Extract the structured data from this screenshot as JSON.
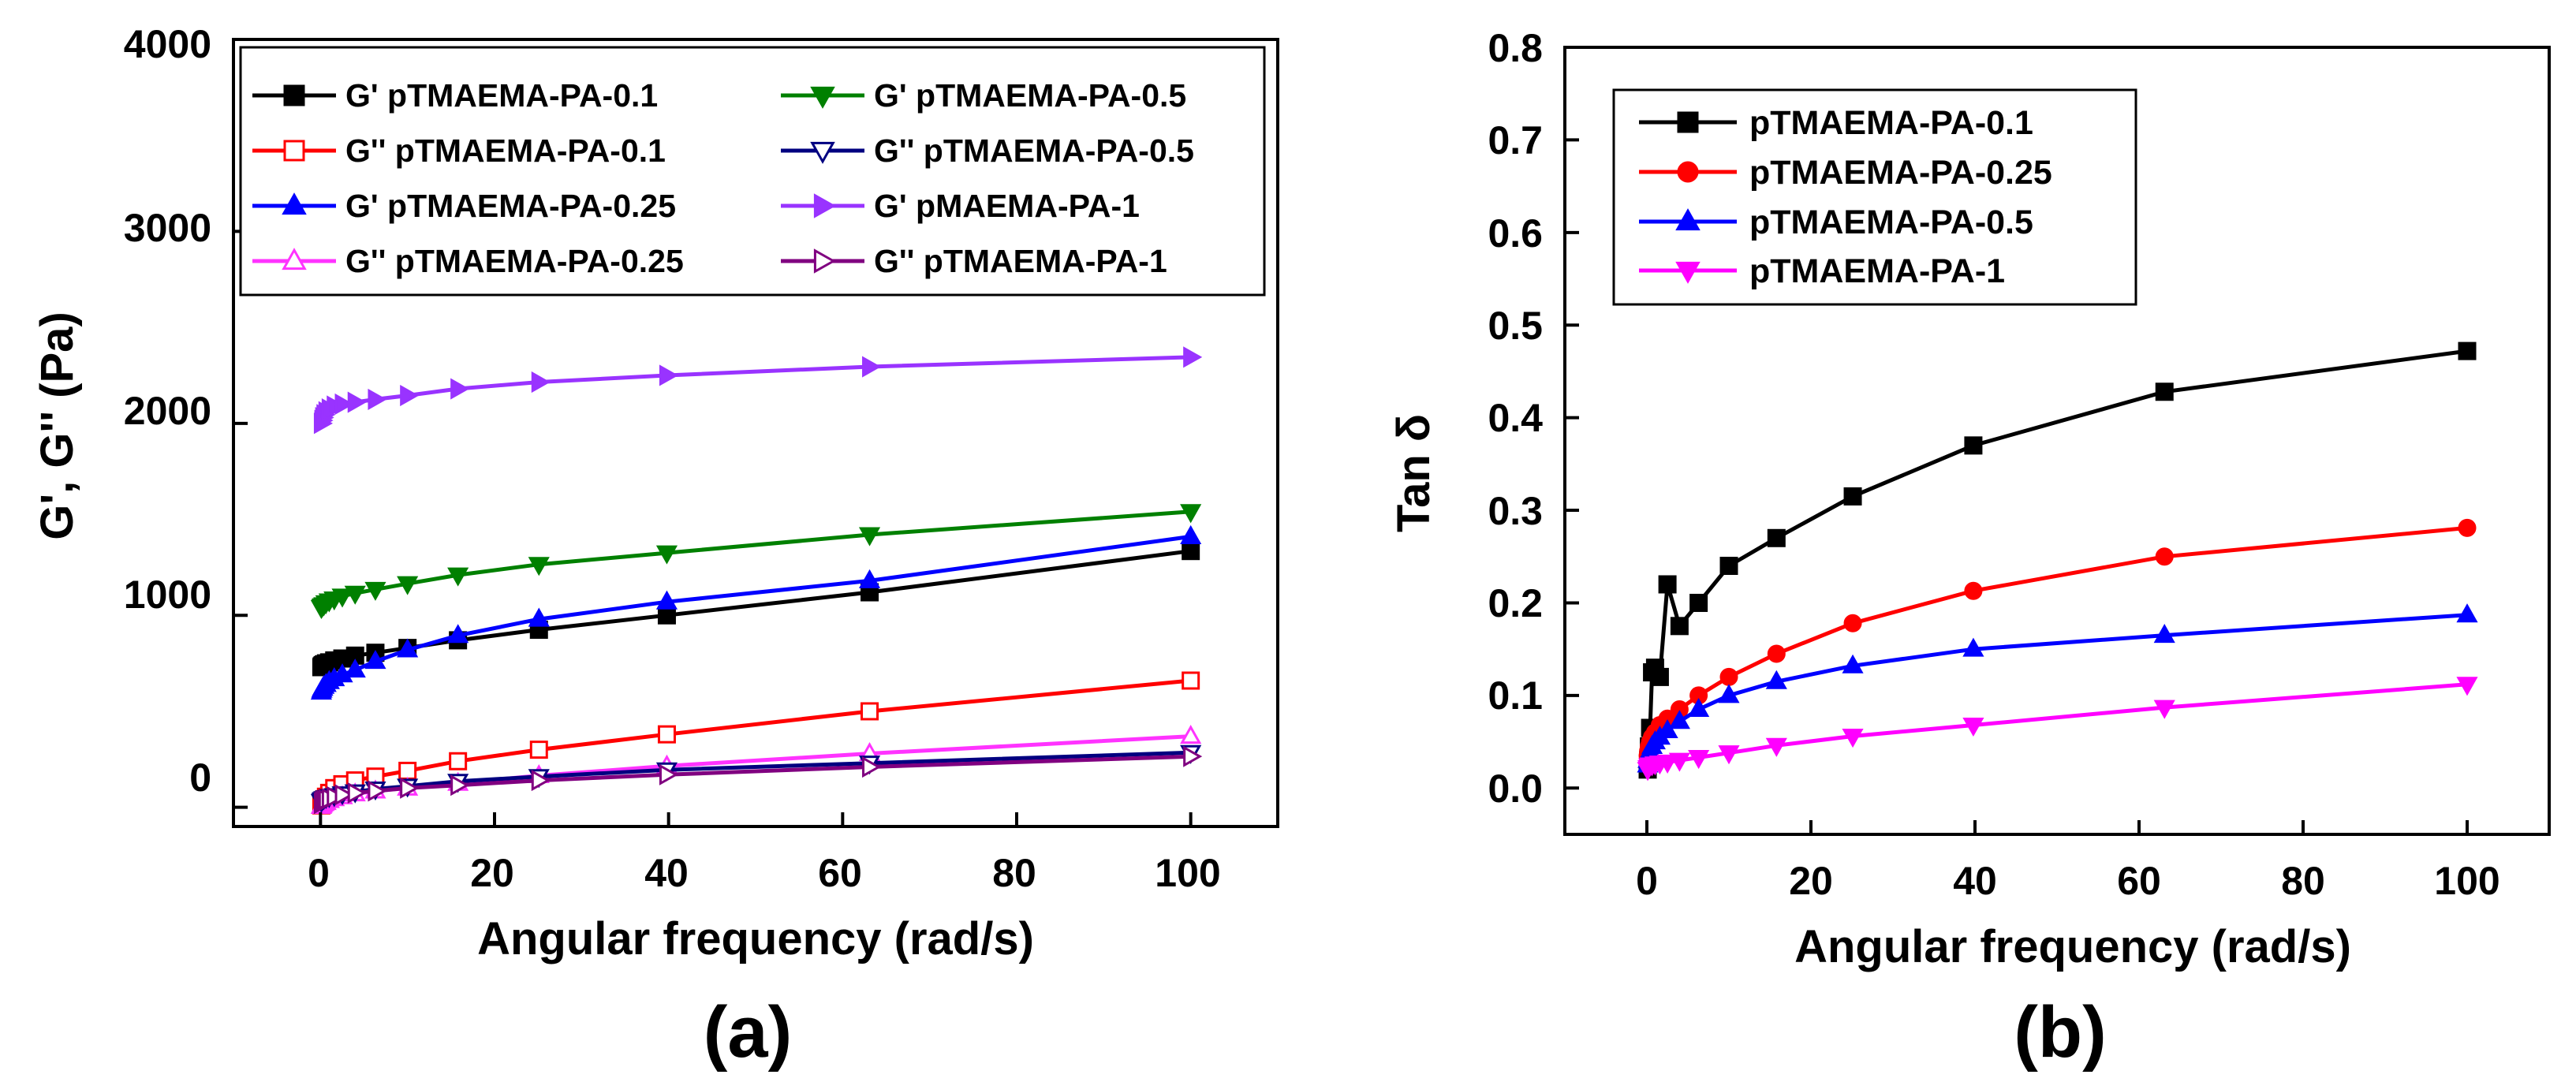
{
  "chart_data": [
    {
      "type": "line",
      "panel_label": "(a)",
      "xlabel": "Angular frequency (rad/s)",
      "ylabel": "G', G'' (Pa)",
      "xlim": [
        -10,
        110
      ],
      "ylim": [
        -100,
        4000
      ],
      "xticks": [
        "0",
        "20",
        "40",
        "60",
        "80",
        "100"
      ],
      "xtick_values": [
        0,
        20,
        40,
        60,
        80,
        100
      ],
      "yticks": [
        "0",
        "1000",
        "2000",
        "3000",
        "4000"
      ],
      "ytick_values": [
        0,
        1000,
        2000,
        3000,
        4000
      ],
      "legend_position": "top",
      "x": [
        0.1,
        0.158,
        0.251,
        0.398,
        0.631,
        1,
        1.58,
        2.51,
        3.98,
        6.31,
        10,
        15.8,
        25.1,
        39.8,
        63.1,
        100
      ],
      "series": [
        {
          "name": "G' pTMAEMA-PA-0.1",
          "color": "#000000",
          "marker": "square",
          "filled": true,
          "values": [
            730,
            735,
            740,
            745,
            750,
            755,
            765,
            775,
            790,
            805,
            830,
            870,
            925,
            1000,
            1120,
            1335
          ]
        },
        {
          "name": "G'' pTMAEMA-PA-0.1",
          "color": "#ff0000",
          "marker": "square",
          "filled": false,
          "values": [
            10,
            20,
            30,
            40,
            55,
            75,
            100,
            120,
            140,
            160,
            190,
            240,
            300,
            380,
            500,
            660
          ]
        },
        {
          "name": "G' pTMAEMA-PA-0.25",
          "color": "#0000ff",
          "marker": "triangle-up",
          "filled": true,
          "values": [
            600,
            610,
            620,
            630,
            640,
            655,
            670,
            690,
            715,
            760,
            820,
            895,
            980,
            1070,
            1180,
            1410
          ]
        },
        {
          "name": "G'' pTMAEMA-PA-0.25",
          "color": "#ff33ff",
          "marker": "triangle-up",
          "filled": false,
          "values": [
            5,
            10,
            15,
            20,
            25,
            35,
            45,
            55,
            70,
            85,
            100,
            125,
            165,
            215,
            280,
            370
          ]
        },
        {
          "name": "G' pTMAEMA-PA-0.5",
          "color": "#008000",
          "marker": "triangle-down",
          "filled": true,
          "values": [
            1040,
            1045,
            1050,
            1055,
            1065,
            1075,
            1085,
            1100,
            1115,
            1135,
            1165,
            1210,
            1265,
            1325,
            1420,
            1540
          ]
        },
        {
          "name": "G'' pTMAEMA-PA-0.5",
          "color": "#000080",
          "marker": "triangle-down",
          "filled": false,
          "values": [
            30,
            35,
            40,
            45,
            50,
            55,
            60,
            70,
            80,
            95,
            110,
            135,
            160,
            195,
            230,
            285
          ]
        },
        {
          "name": "G' pMAEMA-PA-1",
          "color": "#9933ff",
          "marker": "triangle-right",
          "filled": true,
          "values": [
            2000,
            2015,
            2030,
            2045,
            2060,
            2075,
            2090,
            2100,
            2110,
            2125,
            2145,
            2180,
            2215,
            2250,
            2295,
            2345
          ]
        },
        {
          "name": "G'' pTMAEMA-PA-1",
          "color": "#800080",
          "marker": "triangle-right",
          "filled": false,
          "values": [
            20,
            25,
            30,
            35,
            40,
            45,
            55,
            65,
            75,
            85,
            100,
            115,
            140,
            170,
            210,
            265
          ]
        }
      ]
    },
    {
      "type": "line",
      "panel_label": "(b)",
      "xlabel": "Angular frequency (rad/s)",
      "ylabel": "Tan δ",
      "xlim": [
        -10,
        110
      ],
      "ylim": [
        -0.05,
        0.8
      ],
      "xticks": [
        "0",
        "20",
        "40",
        "60",
        "80",
        "100"
      ],
      "xtick_values": [
        0,
        20,
        40,
        60,
        80,
        100
      ],
      "yticks": [
        "0.0",
        "0.1",
        "0.2",
        "0.3",
        "0.4",
        "0.5",
        "0.6",
        "0.7",
        "0.8"
      ],
      "ytick_values": [
        0,
        0.1,
        0.2,
        0.3,
        0.4,
        0.5,
        0.6,
        0.7,
        0.8
      ],
      "legend_position": "top-left",
      "x": [
        0.1,
        0.158,
        0.251,
        0.398,
        0.631,
        1,
        1.58,
        2.51,
        3.98,
        6.31,
        10,
        15.8,
        25.1,
        39.8,
        63.1,
        100
      ],
      "series": [
        {
          "name": "pTMAEMA-PA-0.1",
          "color": "#000000",
          "marker": "square",
          "values": [
            0.02,
            0.03,
            0.045,
            0.065,
            0.125,
            0.13,
            0.12,
            0.22,
            0.175,
            0.2,
            0.24,
            0.27,
            0.315,
            0.37,
            0.428,
            0.472
          ]
        },
        {
          "name": "pTMAEMA-PA-0.25",
          "color": "#ff0000",
          "marker": "circle",
          "values": [
            0.035,
            0.04,
            0.045,
            0.05,
            0.055,
            0.06,
            0.068,
            0.075,
            0.085,
            0.1,
            0.12,
            0.145,
            0.178,
            0.213,
            0.25,
            0.281
          ]
        },
        {
          "name": "pTMAEMA-PA-0.5",
          "color": "#0000ff",
          "marker": "triangle-up",
          "values": [
            0.025,
            0.03,
            0.035,
            0.04,
            0.045,
            0.05,
            0.055,
            0.062,
            0.072,
            0.085,
            0.1,
            0.115,
            0.132,
            0.15,
            0.165,
            0.187
          ]
        },
        {
          "name": "pTMAEMA-PA-1",
          "color": "#ff00ff",
          "marker": "triangle-down",
          "values": [
            0.02,
            0.022,
            0.024,
            0.025,
            0.025,
            0.026,
            0.027,
            0.028,
            0.03,
            0.033,
            0.038,
            0.046,
            0.056,
            0.068,
            0.087,
            0.112
          ]
        }
      ]
    }
  ]
}
